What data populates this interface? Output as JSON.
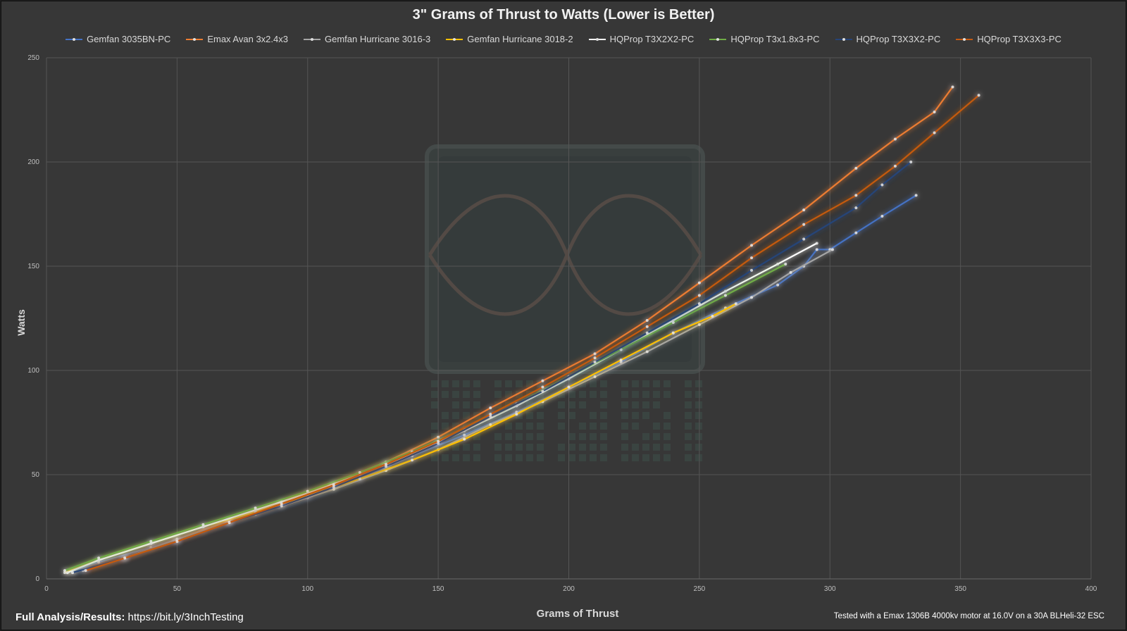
{
  "chart_data": {
    "type": "line",
    "title": "3\" Grams of Thrust to Watts (Lower is Better)",
    "xlabel": "Grams of Thrust",
    "ylabel": "Watts",
    "xlim": [
      0,
      400
    ],
    "ylim": [
      0,
      250
    ],
    "xticks": [
      0,
      50,
      100,
      150,
      200,
      250,
      300,
      350,
      400
    ],
    "yticks": [
      0,
      50,
      100,
      150,
      200,
      250
    ],
    "grid": true,
    "legend_position": "top",
    "series": [
      {
        "name": "Gemfan 3035BN-PC",
        "color": "#4472c4",
        "x": [
          8,
          20,
          40,
          60,
          80,
          100,
          120,
          140,
          160,
          180,
          200,
          220,
          240,
          260,
          280,
          290,
          295,
          300,
          310,
          320,
          333
        ],
        "y": [
          3,
          8,
          15,
          23,
          31,
          39,
          48,
          59,
          69,
          80,
          92,
          104,
          118,
          130,
          141,
          150,
          158,
          158,
          166,
          174,
          184
        ]
      },
      {
        "name": "Emax Avan 3x2.4x3",
        "color": "#ed7d31",
        "x": [
          14,
          30,
          50,
          70,
          90,
          110,
          130,
          150,
          170,
          190,
          210,
          230,
          250,
          270,
          290,
          310,
          325,
          340,
          347
        ],
        "y": [
          4,
          10,
          19,
          28,
          37,
          46,
          56,
          68,
          82,
          95,
          108,
          124,
          142,
          160,
          177,
          197,
          211,
          224,
          236
        ]
      },
      {
        "name": "Gemfan Hurricane 3016-3",
        "color": "#a5a5a5",
        "x": [
          10,
          30,
          50,
          70,
          90,
          110,
          130,
          150,
          170,
          190,
          210,
          230,
          250,
          270,
          285,
          301
        ],
        "y": [
          3,
          10,
          19,
          27,
          35,
          43,
          52,
          62,
          74,
          85,
          97,
          109,
          122,
          135,
          147,
          158
        ]
      },
      {
        "name": "Gemfan Hurricane 3018-2",
        "color": "#ffc000",
        "x": [
          7,
          20,
          40,
          60,
          80,
          100,
          120,
          140,
          160,
          180,
          200,
          220,
          240,
          255,
          264
        ],
        "y": [
          3,
          9,
          17,
          25,
          32,
          40,
          48,
          57,
          67,
          79,
          92,
          105,
          118,
          126,
          132
        ]
      },
      {
        "name": "HQProp T3X2X2-PC",
        "color": "#ffffff",
        "x": [
          8,
          20,
          40,
          60,
          80,
          100,
          120,
          140,
          160,
          180,
          200,
          220,
          240,
          260,
          280,
          295
        ],
        "y": [
          3,
          9,
          17,
          25,
          33,
          41,
          50,
          60,
          71,
          83,
          96,
          110,
          124,
          138,
          151,
          161
        ]
      },
      {
        "name": "HQProp T3x1.8x3-PC",
        "color": "#70ad47",
        "x": [
          7,
          20,
          40,
          60,
          80,
          100,
          120,
          140,
          160,
          180,
          200,
          220,
          240,
          260,
          283
        ],
        "y": [
          4,
          10,
          18,
          26,
          34,
          42,
          51,
          61,
          72,
          84,
          97,
          110,
          123,
          136,
          151
        ]
      },
      {
        "name": "HQProp T3X3X2-PC",
        "color": "#264478",
        "x": [
          10,
          30,
          50,
          70,
          90,
          110,
          130,
          150,
          170,
          190,
          210,
          230,
          250,
          270,
          290,
          310,
          320,
          331
        ],
        "y": [
          3,
          10,
          18,
          27,
          35,
          44,
          54,
          65,
          78,
          90,
          104,
          118,
          132,
          148,
          163,
          178,
          189,
          200
        ]
      },
      {
        "name": "HQProp T3X3X3-PC",
        "color": "#c55a11",
        "x": [
          15,
          30,
          50,
          70,
          90,
          110,
          130,
          150,
          170,
          190,
          210,
          230,
          250,
          270,
          290,
          310,
          325,
          340,
          357
        ],
        "y": [
          4,
          10,
          18,
          27,
          36,
          45,
          55,
          66,
          79,
          92,
          106,
          121,
          136,
          154,
          170,
          184,
          198,
          214,
          232
        ]
      }
    ],
    "annotations": [
      "Full Analysis/Results: https://bit.ly/3InchTesting",
      "Tested with a Emax 1306B 4000kv motor at 16.0V on a 30A BLHeli-32 ESC"
    ]
  },
  "footer": {
    "left_bold": "Full Analysis/Results:",
    "left_link": "https://bit.ly/3InchTesting",
    "right": "Tested with a Emax 1306B 4000kv motor at 16.0V on a 30A BLHeli-32 ESC"
  },
  "colors": {
    "background": "#373737",
    "grid": "#555555",
    "text": "#d9d9d9"
  }
}
